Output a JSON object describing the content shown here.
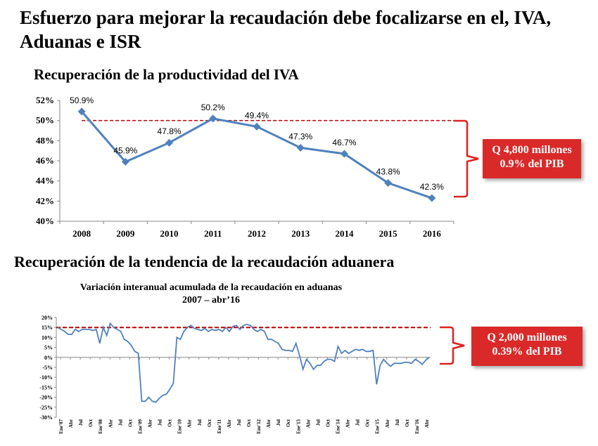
{
  "slide": {
    "title": "Esfuerzo para mejorar la recaudación debe focalizarse en el, IVA, Aduanas e ISR"
  },
  "iva": {
    "section_title": "Recuperación de la productividad del IVA",
    "callout_line1": "Q 4,800 millones",
    "callout_line2": "0.9% del PIB"
  },
  "aduana": {
    "section_title": "Recuperación de la tendencia de la recaudación aduanera",
    "subtitle_line1": "Variación interanual acumulada de la recaudación en aduanas",
    "subtitle_line2": "2007 – abr’16",
    "callout_line1": "Q 2,000 millones",
    "callout_line2": "0.39% del PIB"
  },
  "colors": {
    "series": "#4f81bd",
    "reference": "#c00000",
    "bracket": "#e02020"
  },
  "chart_data": [
    {
      "type": "line",
      "title": "Recuperación de la productividad del IVA",
      "categories": [
        "2008",
        "2009",
        "2010",
        "2011",
        "2012",
        "2013",
        "2014",
        "2015",
        "2016"
      ],
      "values": [
        50.9,
        45.9,
        47.8,
        50.2,
        49.4,
        47.3,
        46.7,
        43.8,
        42.3
      ],
      "data_labels": [
        "50.9%",
        "45.9%",
        "47.8%",
        "50.2%",
        "49.4%",
        "47.3%",
        "46.7%",
        "43.8%",
        "42.3%"
      ],
      "ylim": [
        40,
        52
      ],
      "yticks": [
        40,
        42,
        44,
        46,
        48,
        50,
        52
      ],
      "ytick_labels": [
        "40%",
        "42%",
        "44%",
        "46%",
        "48%",
        "50%",
        "52%"
      ],
      "reference_line": 50,
      "markers": "diamond",
      "xlabel": "",
      "ylabel": ""
    },
    {
      "type": "line",
      "title": "Variación interanual acumulada de la recaudación en aduanas 2007 – abr’16",
      "x_start": "Ene'07",
      "x_end": "Abr'16",
      "values": [
        15,
        14,
        13,
        11.5,
        11.5,
        14,
        13,
        14,
        14,
        14,
        13.5,
        14,
        7,
        15,
        11,
        17,
        15,
        14,
        13,
        9,
        8,
        6,
        3,
        2,
        -22,
        -22,
        -20,
        -22,
        -22.5,
        -20.5,
        -19,
        -18.5,
        -16,
        -13,
        10,
        9,
        13,
        15,
        16,
        14.5,
        14,
        13.5,
        14.5,
        13,
        14,
        13.5,
        14,
        13,
        15,
        13,
        15.5,
        16,
        14,
        16,
        16.5,
        16,
        14,
        13,
        14,
        13,
        9,
        9,
        8,
        7,
        4,
        3.5,
        3.5,
        3,
        7,
        1,
        -6,
        -1,
        -3,
        -6,
        -4,
        -4,
        -2,
        -1,
        -1,
        -2,
        5.5,
        2,
        3.5,
        2,
        3,
        4,
        3.5,
        4,
        3,
        3,
        3.5,
        -13.5,
        -4,
        -1,
        -3,
        -4.5,
        -3,
        -3,
        -3,
        -2.5,
        -2.5,
        -3,
        -1,
        -2,
        -3.5,
        -1.5,
        0
      ],
      "ylim": [
        -30,
        20
      ],
      "yticks": [
        -30,
        -25,
        -20,
        -15,
        -10,
        -5,
        0,
        5,
        10,
        15,
        20
      ],
      "ytick_labels": [
        "-30%",
        "-25%",
        "-20%",
        "-15%",
        "-10%",
        "-5%",
        "0%",
        "5%",
        "10%",
        "15%",
        "20%"
      ],
      "xtick_labels": [
        "Ene'07",
        "Abr",
        "Jul",
        "Oct",
        "Ene'08",
        "Abr",
        "Jul",
        "Oct",
        "Ene'09",
        "Abr",
        "Jul",
        "Oct",
        "Ene'10",
        "Abr",
        "Jul",
        "Oct",
        "Ene'11",
        "Abr",
        "Jul",
        "Oct",
        "Ene'12",
        "Abr",
        "Jul",
        "Oct",
        "Ene'13",
        "Abr",
        "Jul",
        "Oct",
        "Ene'14",
        "Abr",
        "Jul",
        "Oct",
        "Ene'15",
        "Abr",
        "Jul",
        "Oct",
        "Ene'16",
        "Abr"
      ],
      "reference_line": 15,
      "xlabel": "",
      "ylabel": ""
    }
  ]
}
